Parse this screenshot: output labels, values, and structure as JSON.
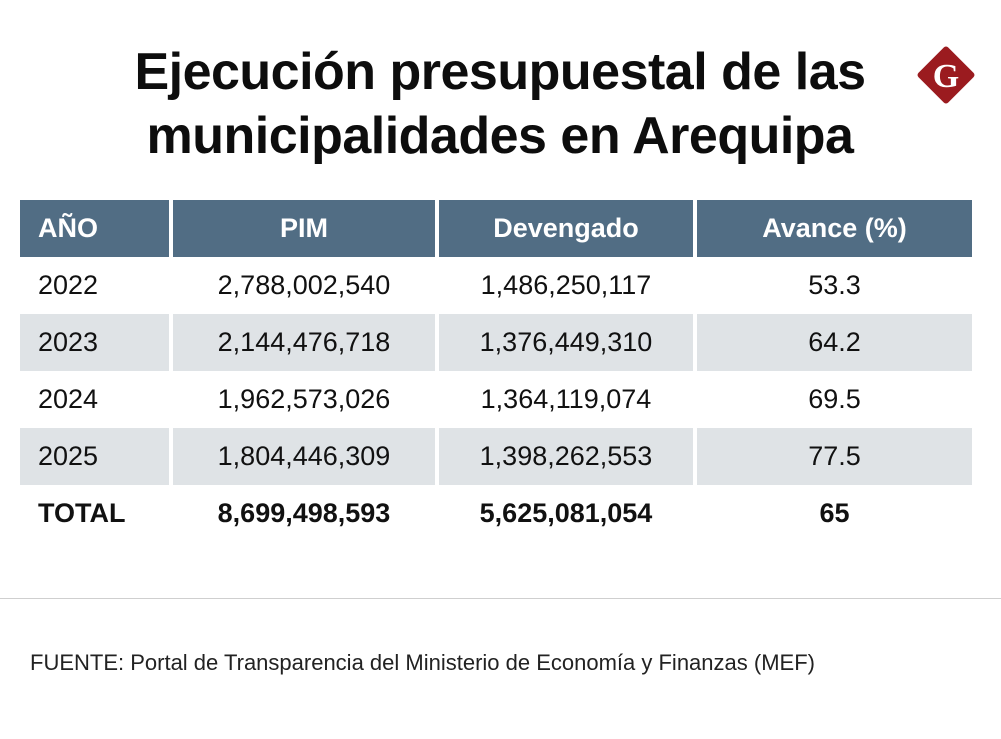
{
  "title": "Ejecución presupuestal de las municipalidades en Arequipa",
  "logo": {
    "letter": "G",
    "color": "#9b1b1f"
  },
  "colors": {
    "header": "#516d84",
    "alt_row": "#dfe3e6"
  },
  "chart_data": {
    "type": "table",
    "columns": [
      "AÑO",
      "PIM",
      "Devengado",
      "Avance (%)"
    ],
    "rows": [
      [
        "2022",
        "2,788,002,540",
        "1,486,250,117",
        "53.3"
      ],
      [
        "2023",
        "2,144,476,718",
        "1,376,449,310",
        "64.2"
      ],
      [
        "2024",
        "1,962,573,026",
        "1,364,119,074",
        "69.5"
      ],
      [
        "2025",
        "1,804,446,309",
        "1,398,262,553",
        "77.5"
      ]
    ],
    "total": [
      "TOTAL",
      "8,699,498,593",
      "5,625,081,054",
      "65"
    ]
  },
  "source": "FUENTE: Portal de Transparencia del Ministerio de Economía y Finanzas (MEF)"
}
